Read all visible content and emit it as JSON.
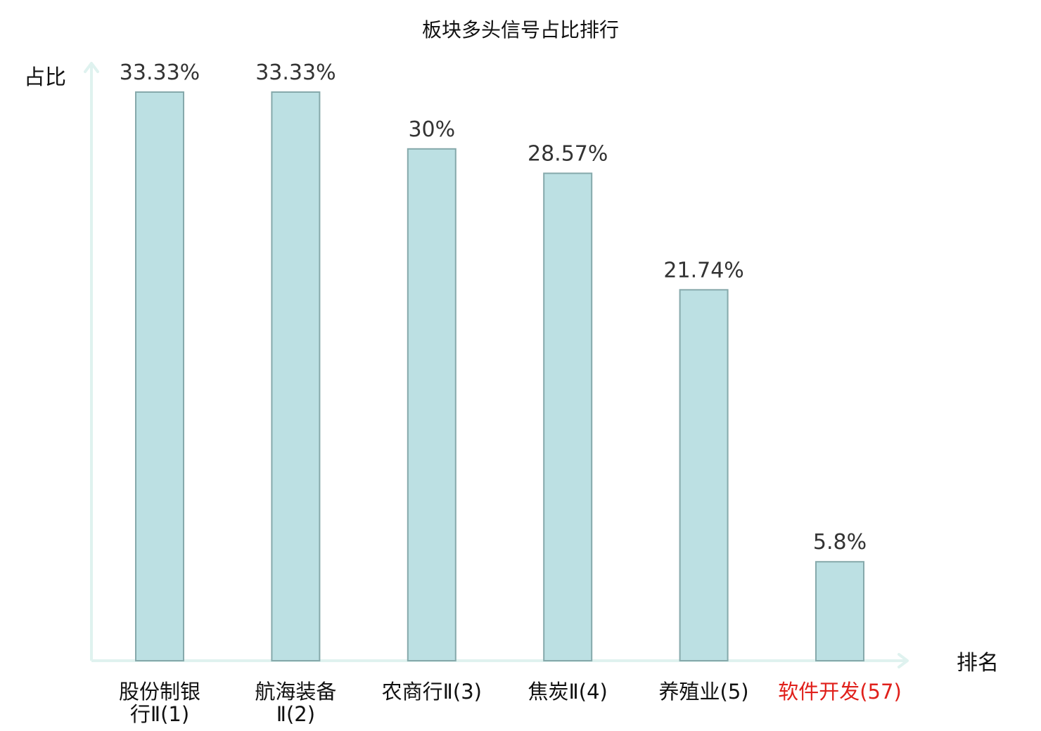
{
  "chart_data": {
    "type": "bar",
    "title": "板块多头信号占比排行",
    "ylabel": "占比",
    "xlabel": "排名",
    "categories": [
      {
        "name": "股份制银行Ⅱ(1)",
        "lines": [
          "股份制银",
          "行Ⅱ(1)"
        ],
        "highlight": false
      },
      {
        "name": "航海装备Ⅱ(2)",
        "lines": [
          "航海装备",
          "Ⅱ(2)"
        ],
        "highlight": false
      },
      {
        "name": "农商行Ⅱ(3)",
        "lines": [
          "农商行Ⅱ(3)"
        ],
        "highlight": false
      },
      {
        "name": "焦炭Ⅱ(4)",
        "lines": [
          "焦炭Ⅱ(4)"
        ],
        "highlight": false
      },
      {
        "name": "养殖业(5)",
        "lines": [
          "养殖业(5)"
        ],
        "highlight": false
      },
      {
        "name": "软件开发(57)",
        "lines": [
          "软件开发(57)"
        ],
        "highlight": true
      }
    ],
    "values": [
      33.33,
      33.33,
      30,
      28.57,
      21.74,
      5.8
    ],
    "value_labels": [
      "33.33%",
      "33.33%",
      "30%",
      "28.57%",
      "21.74%",
      "5.8%"
    ],
    "ylim": [
      0,
      33.33
    ],
    "grid": false,
    "colors": {
      "bar_fill": "#bce0e3",
      "bar_stroke": "#86a9ab",
      "axis": "#dff2ef",
      "label_text": "#333333",
      "highlight_text": "#e0201b"
    }
  }
}
